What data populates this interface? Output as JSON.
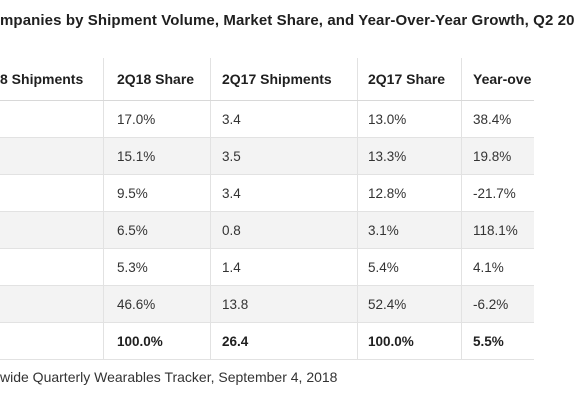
{
  "title": "mpanies by Shipment Volume, Market Share, and Year-Over-Year Growth, Q2 20",
  "table": {
    "headers": [
      "8 Shipments",
      "2Q18 Share",
      "2Q17 Shipments",
      "2Q17 Share",
      "Year-ove"
    ],
    "rows": [
      [
        "",
        "17.0%",
        "3.4",
        "13.0%",
        "38.4%"
      ],
      [
        "",
        "15.1%",
        "3.5",
        "13.3%",
        "19.8%"
      ],
      [
        "",
        "9.5%",
        "3.4",
        "12.8%",
        "-21.7%"
      ],
      [
        "",
        "6.5%",
        "0.8",
        "3.1%",
        "118.1%"
      ],
      [
        "",
        "5.3%",
        "1.4",
        "5.4%",
        "4.1%"
      ],
      [
        "",
        "46.6%",
        "13.8",
        "52.4%",
        "-6.2%"
      ],
      [
        "",
        "100.0%",
        "26.4",
        "100.0%",
        "5.5%"
      ]
    ]
  },
  "source": "wide Quarterly Wearables Tracker, September 4, 2018"
}
